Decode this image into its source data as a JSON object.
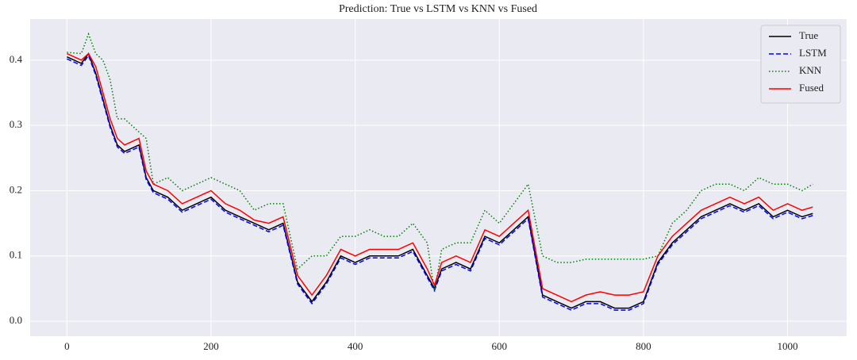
{
  "chart_data": {
    "type": "line",
    "title": "Prediction: True vs LSTM vs KNN vs Fused",
    "x": [
      0,
      20,
      30,
      40,
      50,
      60,
      70,
      80,
      100,
      110,
      120,
      140,
      160,
      180,
      200,
      220,
      240,
      260,
      280,
      300,
      320,
      340,
      360,
      380,
      400,
      420,
      440,
      460,
      480,
      500,
      510,
      520,
      540,
      560,
      580,
      600,
      620,
      640,
      660,
      680,
      700,
      720,
      740,
      760,
      780,
      800,
      820,
      840,
      860,
      880,
      900,
      920,
      940,
      960,
      980,
      1000,
      1020,
      1035
    ],
    "series": [
      {
        "name": "True",
        "color": "#000000",
        "dash": "solid",
        "values": [
          0.405,
          0.395,
          0.41,
          0.38,
          0.34,
          0.3,
          0.27,
          0.26,
          0.27,
          0.22,
          0.2,
          0.19,
          0.17,
          0.18,
          0.19,
          0.17,
          0.16,
          0.15,
          0.14,
          0.15,
          0.06,
          0.03,
          0.06,
          0.1,
          0.09,
          0.1,
          0.1,
          0.1,
          0.11,
          0.07,
          0.05,
          0.08,
          0.09,
          0.08,
          0.13,
          0.12,
          0.14,
          0.16,
          0.04,
          0.03,
          0.02,
          0.03,
          0.03,
          0.02,
          0.02,
          0.03,
          0.09,
          0.12,
          0.14,
          0.16,
          0.17,
          0.18,
          0.17,
          0.18,
          0.16,
          0.17,
          0.16,
          0.165
        ]
      },
      {
        "name": "LSTM",
        "color": "#0000ff",
        "dash": "dashed",
        "values": [
          0.402,
          0.392,
          0.407,
          0.377,
          0.337,
          0.297,
          0.267,
          0.257,
          0.267,
          0.217,
          0.197,
          0.187,
          0.167,
          0.177,
          0.187,
          0.167,
          0.157,
          0.147,
          0.137,
          0.147,
          0.057,
          0.027,
          0.057,
          0.097,
          0.087,
          0.097,
          0.097,
          0.097,
          0.107,
          0.067,
          0.047,
          0.077,
          0.087,
          0.077,
          0.127,
          0.117,
          0.137,
          0.157,
          0.037,
          0.027,
          0.017,
          0.027,
          0.027,
          0.017,
          0.017,
          0.027,
          0.087,
          0.117,
          0.137,
          0.157,
          0.167,
          0.177,
          0.167,
          0.177,
          0.157,
          0.167,
          0.157,
          0.162
        ]
      },
      {
        "name": "KNN",
        "color": "#008000",
        "dash": "dotted",
        "values": [
          0.412,
          0.41,
          0.44,
          0.41,
          0.4,
          0.37,
          0.31,
          0.31,
          0.29,
          0.28,
          0.21,
          0.22,
          0.2,
          0.21,
          0.22,
          0.21,
          0.2,
          0.17,
          0.18,
          0.18,
          0.08,
          0.1,
          0.1,
          0.13,
          0.13,
          0.14,
          0.13,
          0.13,
          0.15,
          0.12,
          0.045,
          0.11,
          0.12,
          0.12,
          0.17,
          0.15,
          0.18,
          0.21,
          0.1,
          0.09,
          0.09,
          0.095,
          0.095,
          0.095,
          0.095,
          0.095,
          0.1,
          0.15,
          0.17,
          0.2,
          0.21,
          0.21,
          0.2,
          0.22,
          0.21,
          0.21,
          0.2,
          0.21
        ]
      },
      {
        "name": "Fused",
        "color": "#ff0000",
        "dash": "solid",
        "values": [
          0.41,
          0.4,
          0.41,
          0.39,
          0.35,
          0.31,
          0.28,
          0.27,
          0.28,
          0.23,
          0.21,
          0.2,
          0.18,
          0.19,
          0.2,
          0.18,
          0.17,
          0.155,
          0.15,
          0.16,
          0.07,
          0.04,
          0.07,
          0.11,
          0.1,
          0.11,
          0.11,
          0.11,
          0.12,
          0.08,
          0.055,
          0.09,
          0.1,
          0.09,
          0.14,
          0.13,
          0.15,
          0.17,
          0.05,
          0.04,
          0.03,
          0.04,
          0.045,
          0.04,
          0.04,
          0.045,
          0.1,
          0.13,
          0.15,
          0.17,
          0.18,
          0.19,
          0.18,
          0.19,
          0.17,
          0.18,
          0.17,
          0.175
        ]
      }
    ],
    "xlim": [
      -51,
      1082
    ],
    "ylim": [
      -0.023,
      0.463
    ],
    "xticks": [
      0,
      200,
      400,
      600,
      800,
      1000
    ],
    "yticks": [
      {
        "value": 0,
        "label": "0.0"
      },
      0.1,
      0.2,
      0.3,
      0.4
    ],
    "grid": true,
    "legend": "upper right"
  }
}
